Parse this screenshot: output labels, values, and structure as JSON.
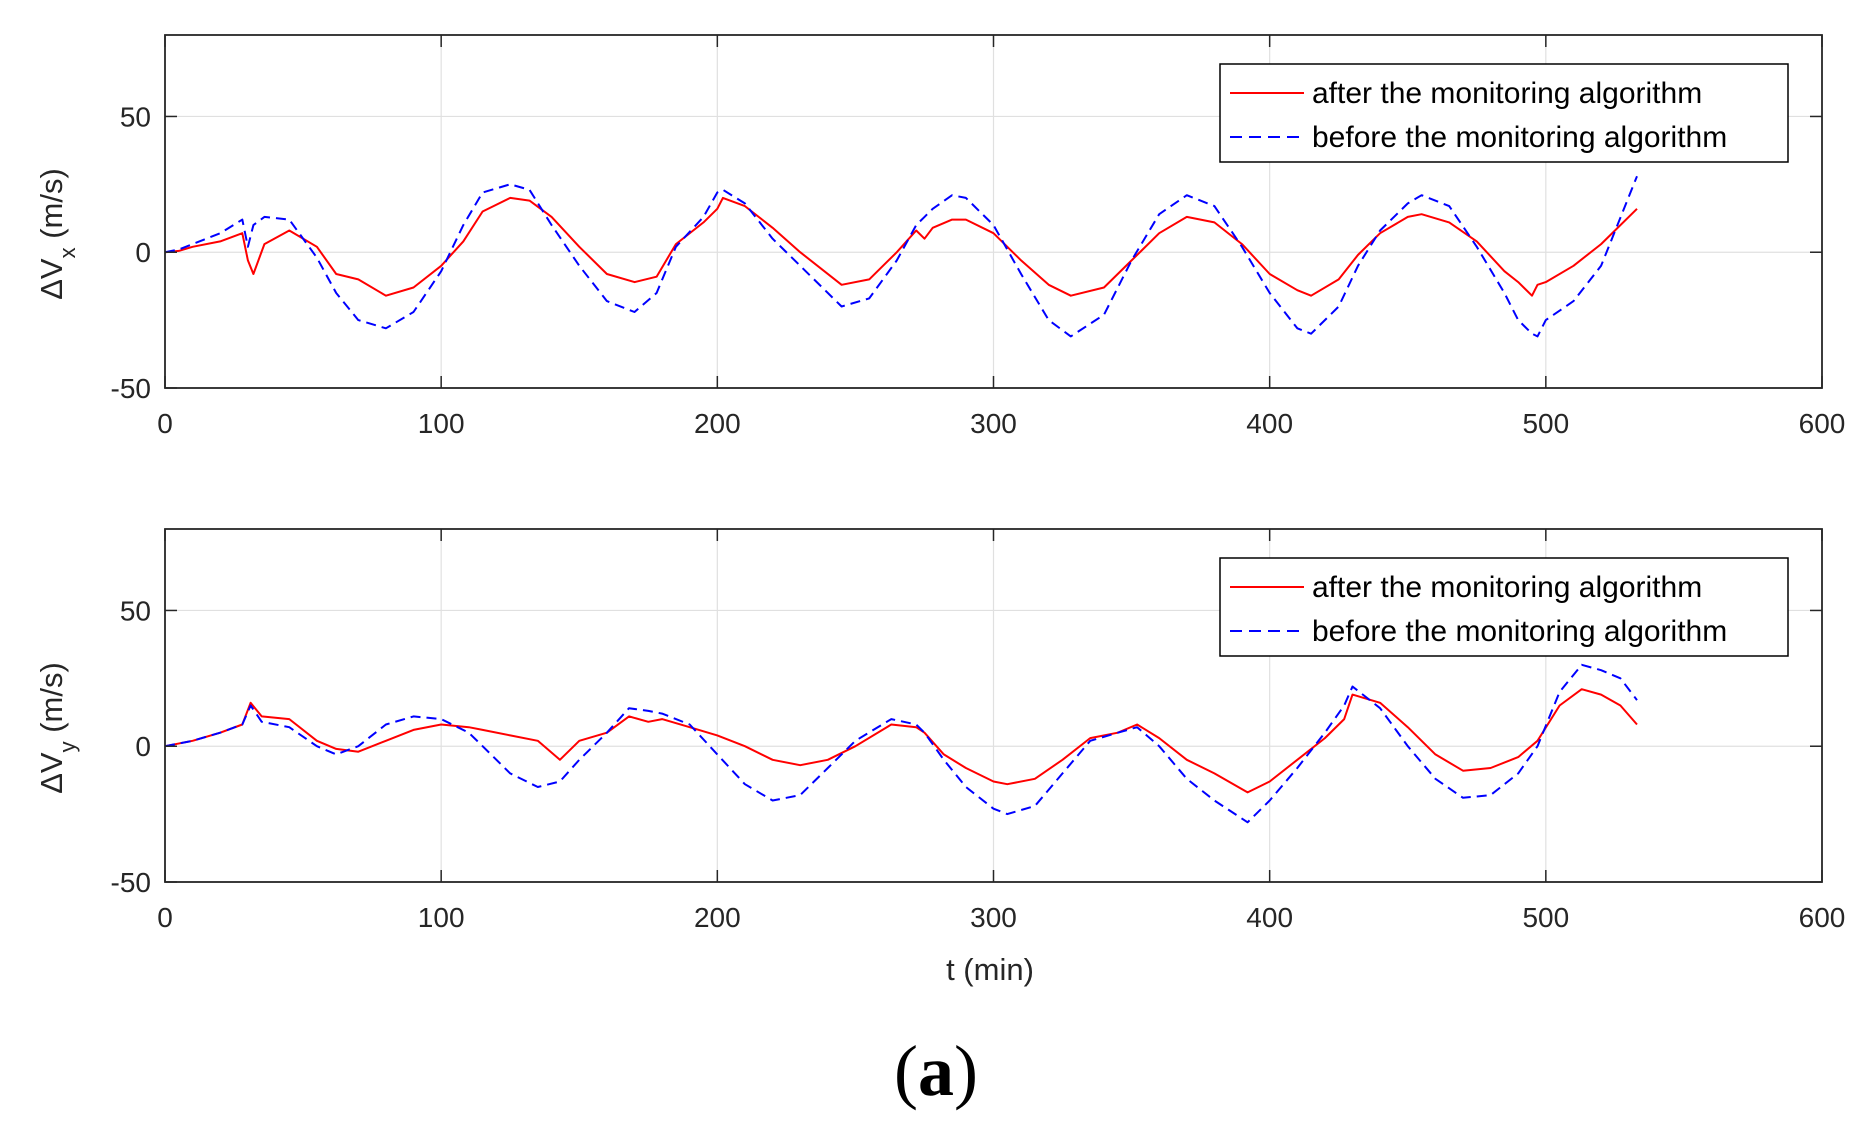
{
  "chart_data": [
    {
      "type": "line",
      "title": "",
      "xlabel": "",
      "ylabel_main": "ΔV",
      "ylabel_sub": "x",
      "ylabel_unit": " (m/s)",
      "xlim": [
        0,
        600
      ],
      "ylim": [
        -50,
        80
      ],
      "xticks": [
        0,
        100,
        200,
        300,
        400,
        500,
        600
      ],
      "yticks": [
        -50,
        0,
        50
      ],
      "grid": true,
      "legend_position": "top-right",
      "series": [
        {
          "name": "after the monitoring algorithm",
          "color": "#ff0000",
          "style": "solid",
          "x": [
            0,
            5,
            10,
            20,
            28,
            30,
            32,
            36,
            45,
            55,
            62,
            70,
            80,
            90,
            100,
            108,
            115,
            125,
            132,
            140,
            150,
            160,
            170,
            178,
            185,
            195,
            200,
            202,
            210,
            220,
            230,
            245,
            255,
            265,
            272,
            275,
            278,
            285,
            290,
            300,
            310,
            320,
            328,
            340,
            350,
            360,
            370,
            380,
            390,
            400,
            410,
            415,
            425,
            432,
            440,
            450,
            455,
            465,
            475,
            485,
            490,
            495,
            497,
            500,
            510,
            520,
            533
          ],
          "y": [
            0,
            0.5,
            2,
            4,
            7,
            -3,
            -8,
            3,
            8,
            2,
            -8,
            -10,
            -16,
            -13,
            -5,
            4,
            15,
            20,
            19,
            13,
            2,
            -8,
            -11,
            -9,
            3,
            11,
            16,
            20,
            17,
            9,
            0,
            -12,
            -10,
            0,
            8,
            5,
            9,
            12,
            12,
            7,
            -3,
            -12,
            -16,
            -13,
            -3,
            7,
            13,
            11,
            3,
            -8,
            -14,
            -16,
            -10,
            -1,
            7,
            13,
            14,
            11,
            4,
            -7,
            -11,
            -16,
            -12,
            -11,
            -5,
            3,
            16
          ]
        },
        {
          "name": "before the monitoring algorithm",
          "color": "#0000ff",
          "style": "dashed",
          "x": [
            0,
            5,
            10,
            20,
            28,
            30,
            32,
            36,
            45,
            55,
            62,
            70,
            80,
            90,
            100,
            108,
            115,
            125,
            132,
            140,
            150,
            160,
            170,
            178,
            185,
            195,
            200,
            202,
            210,
            220,
            230,
            245,
            255,
            265,
            272,
            275,
            278,
            285,
            290,
            300,
            310,
            320,
            328,
            340,
            350,
            360,
            370,
            380,
            390,
            400,
            410,
            415,
            425,
            432,
            440,
            450,
            455,
            465,
            475,
            485,
            490,
            495,
            497,
            500,
            510,
            520,
            533
          ],
          "y": [
            0,
            1,
            3,
            7,
            12,
            2,
            10,
            13,
            12,
            -2,
            -15,
            -25,
            -28,
            -22,
            -7,
            10,
            22,
            25,
            23,
            10,
            -5,
            -18,
            -22,
            -15,
            2,
            13,
            22,
            23,
            18,
            5,
            -5,
            -20,
            -17,
            -3,
            10,
            13,
            16,
            21,
            20,
            10,
            -8,
            -25,
            -31,
            -23,
            -3,
            14,
            21,
            17,
            2,
            -15,
            -28,
            -30,
            -20,
            -5,
            8,
            18,
            21,
            17,
            2,
            -15,
            -25,
            -30,
            -31,
            -25,
            -18,
            -5,
            28
          ]
        }
      ]
    },
    {
      "type": "line",
      "title": "",
      "xlabel": "t (min)",
      "ylabel_main": "ΔV",
      "ylabel_sub": "y",
      "ylabel_unit": " (m/s)",
      "xlim": [
        0,
        600
      ],
      "ylim": [
        -50,
        80
      ],
      "xticks": [
        0,
        100,
        200,
        300,
        400,
        500,
        600
      ],
      "yticks": [
        -50,
        0,
        50
      ],
      "grid": true,
      "legend_position": "top-right",
      "series": [
        {
          "name": "after the monitoring algorithm",
          "color": "#ff0000",
          "style": "solid",
          "x": [
            0,
            10,
            20,
            28,
            31,
            35,
            45,
            55,
            62,
            70,
            80,
            90,
            100,
            110,
            115,
            125,
            135,
            143,
            150,
            160,
            168,
            175,
            180,
            190,
            200,
            210,
            220,
            230,
            240,
            250,
            263,
            272,
            275,
            282,
            290,
            300,
            305,
            315,
            325,
            335,
            345,
            352,
            360,
            370,
            380,
            392,
            400,
            410,
            420,
            427,
            430,
            440,
            450,
            460,
            470,
            480,
            490,
            497,
            505,
            513,
            520,
            527,
            533
          ],
          "y": [
            0,
            2,
            5,
            8,
            16,
            11,
            10,
            2,
            -1,
            -2,
            2,
            6,
            8,
            7,
            6,
            4,
            2,
            -5,
            2,
            5,
            11,
            9,
            10,
            7,
            4,
            0,
            -5,
            -7,
            -5,
            0,
            8,
            7,
            5,
            -3,
            -8,
            -13,
            -14,
            -12,
            -5,
            3,
            5,
            8,
            3,
            -5,
            -10,
            -17,
            -13,
            -5,
            3,
            10,
            19,
            16,
            7,
            -3,
            -9,
            -8,
            -4,
            2,
            15,
            21,
            19,
            15,
            8
          ]
        },
        {
          "name": "before the monitoring algorithm",
          "color": "#0000ff",
          "style": "dashed",
          "x": [
            0,
            10,
            20,
            28,
            31,
            35,
            45,
            55,
            62,
            70,
            80,
            90,
            100,
            110,
            115,
            125,
            135,
            143,
            150,
            160,
            168,
            175,
            180,
            190,
            200,
            210,
            220,
            230,
            240,
            250,
            263,
            272,
            275,
            282,
            290,
            300,
            305,
            315,
            325,
            335,
            345,
            352,
            360,
            370,
            380,
            392,
            400,
            410,
            420,
            427,
            430,
            440,
            450,
            460,
            470,
            480,
            490,
            497,
            505,
            513,
            520,
            527,
            533
          ],
          "y": [
            0,
            2,
            5,
            8,
            15,
            9,
            7,
            0,
            -3,
            0,
            8,
            11,
            10,
            5,
            0,
            -10,
            -15,
            -13,
            -5,
            5,
            14,
            13,
            12,
            8,
            -3,
            -14,
            -20,
            -18,
            -8,
            2,
            10,
            8,
            5,
            -5,
            -15,
            -23,
            -25,
            -22,
            -10,
            2,
            5,
            7,
            0,
            -12,
            -20,
            -28,
            -20,
            -8,
            5,
            15,
            22,
            14,
            0,
            -12,
            -19,
            -18,
            -10,
            0,
            20,
            30,
            28,
            25,
            17
          ]
        }
      ]
    }
  ],
  "caption": {
    "open": "(",
    "letter": "a",
    "close": ")"
  }
}
